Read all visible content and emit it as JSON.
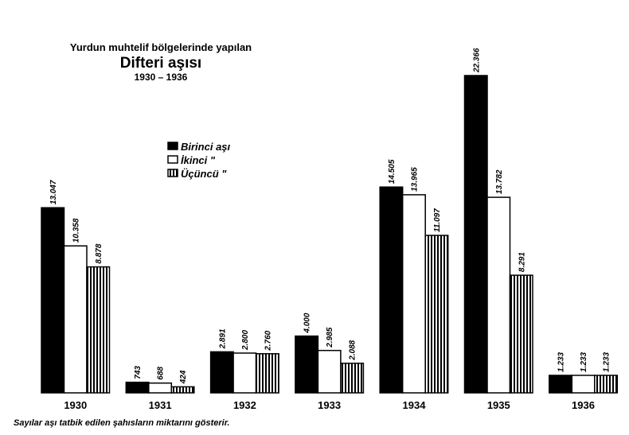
{
  "chart_data": {
    "type": "bar",
    "title_line1": "Yurdun muhtelif bölgelerinde yapılan",
    "title": "Difteri aşısı",
    "subtitle": "1930 – 1936",
    "categories": [
      "1930",
      "1931",
      "1932",
      "1933",
      "1934",
      "1935",
      "1936"
    ],
    "series": [
      {
        "name": "Birinci   aşı",
        "fill": "solid",
        "values": [
          13047,
          743,
          2891,
          4000,
          14505,
          22366,
          1233
        ],
        "labels": [
          "13.047",
          "743",
          "2.891",
          "4.000",
          "14.505",
          "22.366",
          "1.233"
        ]
      },
      {
        "name": "İkinci      \"",
        "fill": "white",
        "values": [
          10358,
          688,
          2800,
          2985,
          13965,
          13782,
          1233
        ],
        "labels": [
          "10.358",
          "688",
          "2.800",
          "2.985",
          "13.965",
          "13.782",
          "1.233"
        ]
      },
      {
        "name": "Üçüncü    \"",
        "fill": "vertical-stripes",
        "values": [
          8878,
          424,
          2760,
          2088,
          11097,
          8291,
          1233
        ],
        "labels": [
          "8.878",
          "424",
          "2.760",
          "2.088",
          "11.097",
          "8.291",
          "1.233"
        ]
      }
    ],
    "ylim": [
      0,
      22366
    ],
    "grid": false,
    "legend_position": "upper-center",
    "footnote": "Sayılar aşı tatbik edilen şahısların miktarını gösterir.",
    "colors": {
      "ink": "#000000",
      "paper": "#ffffff"
    }
  }
}
